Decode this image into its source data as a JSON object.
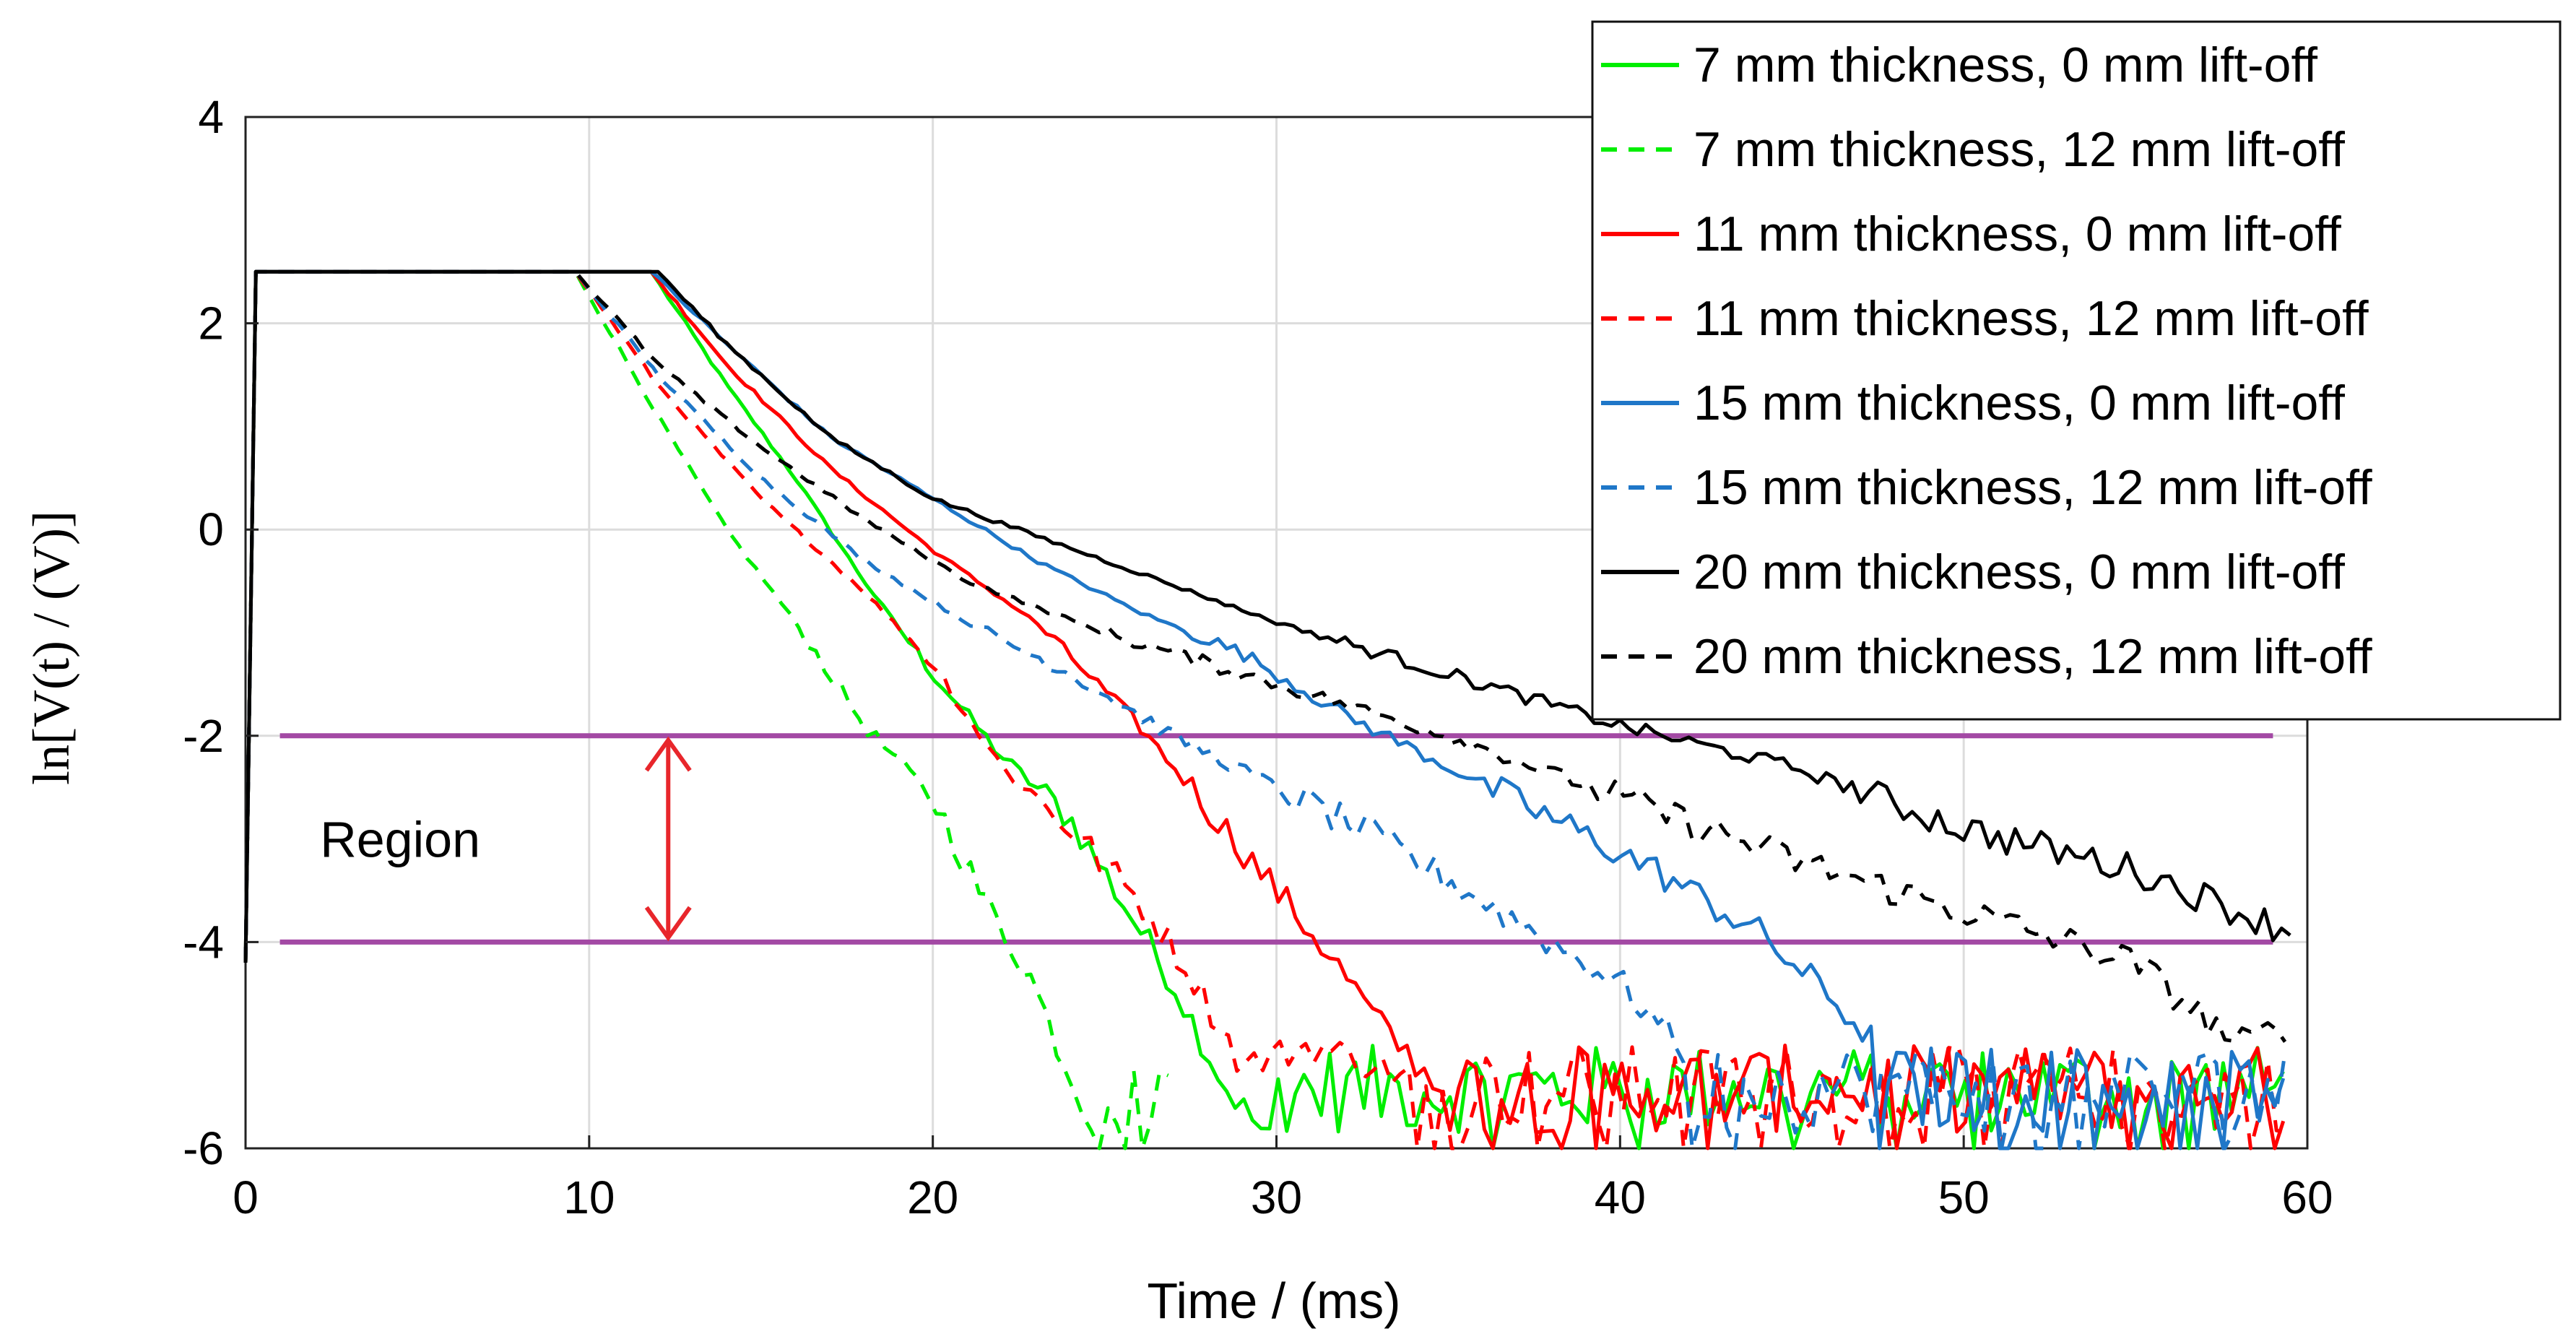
{
  "chart_data": {
    "type": "line",
    "xlabel": "Time / (ms)",
    "ylabel": "ln[V(t) / (V)]",
    "xlim": [
      0,
      60
    ],
    "ylim": [
      -6,
      4
    ],
    "xticks": [
      0,
      10,
      20,
      30,
      40,
      50,
      60
    ],
    "yticks": [
      -6,
      -4,
      -2,
      0,
      2,
      4
    ],
    "xtick_labels": [
      "0",
      "10",
      "20",
      "30",
      "40",
      "50",
      "60"
    ],
    "ytick_labels": [
      "-6",
      "-4",
      "-2",
      "0",
      "2",
      "4"
    ],
    "grid": true,
    "legend_position": "top-right",
    "plateau": {
      "level": 2.5,
      "rise_start_x": 0,
      "rise_start_y": -4.2,
      "rise_end_x": 0.3
    },
    "series": [
      {
        "name": "7 mm thickness, 0 mm lift-off",
        "color": "#00ee00",
        "dash": "solid",
        "start": [
          11.8,
          2.5
        ],
        "points": [
          [
            14,
            1.4
          ],
          [
            16,
            0.5
          ],
          [
            18,
            -0.5
          ],
          [
            20,
            -1.4
          ],
          [
            22,
            -2.2
          ],
          [
            24,
            -2.8
          ],
          [
            25.5,
            -3.6
          ],
          [
            27,
            -4.4
          ],
          [
            28.5,
            -5.4
          ],
          [
            30,
            -6.0
          ]
        ],
        "noise_end": 59.5
      },
      {
        "name": "7 mm thickness, 12 mm lift-off",
        "color": "#00ee00",
        "dash": "dashed",
        "start": [
          9.6,
          2.5
        ],
        "points": [
          [
            12,
            1.1
          ],
          [
            14,
            0.0
          ],
          [
            16,
            -0.9
          ],
          [
            18,
            -1.9
          ],
          [
            20,
            -2.6
          ],
          [
            21.5,
            -3.6
          ],
          [
            22.8,
            -4.3
          ],
          [
            24,
            -5.3
          ],
          [
            25,
            -6.0
          ]
        ],
        "noise_end": 27
      },
      {
        "name": "11 mm thickness, 0 mm lift-off",
        "color": "#ff0000",
        "dash": "solid",
        "start": [
          11.8,
          2.5
        ],
        "points": [
          [
            14,
            1.6
          ],
          [
            17,
            0.6
          ],
          [
            20,
            -0.2
          ],
          [
            23,
            -0.9
          ],
          [
            26,
            -1.9
          ],
          [
            28,
            -2.7
          ],
          [
            30,
            -3.5
          ],
          [
            31.5,
            -4.1
          ],
          [
            33,
            -4.8
          ],
          [
            35,
            -5.5
          ]
        ],
        "noise_end": 59.5
      },
      {
        "name": "11 mm thickness, 12 mm lift-off",
        "color": "#ff0000",
        "dash": "dashed",
        "start": [
          9.6,
          2.5
        ],
        "points": [
          [
            12,
            1.4
          ],
          [
            15,
            0.3
          ],
          [
            18,
            -0.6
          ],
          [
            20,
            -1.3
          ],
          [
            22,
            -2.3
          ],
          [
            24,
            -2.9
          ],
          [
            26,
            -3.6
          ],
          [
            27.5,
            -4.3
          ],
          [
            29,
            -5.2
          ],
          [
            31,
            -5.0
          ],
          [
            33,
            -5.2
          ]
        ],
        "noise_end": 59.5
      },
      {
        "name": "15 mm thickness, 0 mm lift-off",
        "color": "#1f77c8",
        "dash": "solid",
        "start": [
          11.8,
          2.5
        ],
        "points": [
          [
            14,
            1.8
          ],
          [
            17,
            0.9
          ],
          [
            20,
            0.3
          ],
          [
            23,
            -0.3
          ],
          [
            26,
            -0.8
          ],
          [
            29,
            -1.2
          ],
          [
            32,
            -1.8
          ],
          [
            35,
            -2.3
          ],
          [
            38,
            -2.8
          ],
          [
            41,
            -3.3
          ],
          [
            44,
            -3.9
          ],
          [
            46,
            -4.5
          ],
          [
            47.5,
            -5.0
          ]
        ],
        "noise_end": 59.5
      },
      {
        "name": "15 mm thickness, 12 mm lift-off",
        "color": "#1f77c8",
        "dash": "dashed",
        "start": [
          9.6,
          2.5
        ],
        "points": [
          [
            12,
            1.5
          ],
          [
            15,
            0.5
          ],
          [
            18,
            -0.3
          ],
          [
            21,
            -0.9
          ],
          [
            24,
            -1.4
          ],
          [
            27,
            -2.0
          ],
          [
            30,
            -2.5
          ],
          [
            33,
            -3.0
          ],
          [
            36,
            -3.6
          ],
          [
            38,
            -4.0
          ],
          [
            40,
            -4.4
          ],
          [
            42,
            -5.1
          ]
        ],
        "noise_end": 59.5
      },
      {
        "name": "20 mm thickness, 0 mm lift-off",
        "color": "#000000",
        "dash": "solid",
        "start": [
          12.0,
          2.5
        ],
        "points": [
          [
            14,
            1.8
          ],
          [
            17,
            0.9
          ],
          [
            20,
            0.3
          ],
          [
            25,
            -0.3
          ],
          [
            30,
            -0.9
          ],
          [
            35,
            -1.4
          ],
          [
            40,
            -1.9
          ],
          [
            45,
            -2.3
          ],
          [
            50,
            -2.9
          ],
          [
            55,
            -3.3
          ],
          [
            59.5,
            -3.9
          ]
        ],
        "noise_end": 59.5
      },
      {
        "name": "20 mm thickness, 12 mm lift-off",
        "color": "#000000",
        "dash": "dashed",
        "start": [
          9.6,
          2.5
        ],
        "points": [
          [
            12,
            1.6
          ],
          [
            15,
            0.8
          ],
          [
            18,
            0.1
          ],
          [
            21,
            -0.5
          ],
          [
            25,
            -1.0
          ],
          [
            30,
            -1.5
          ],
          [
            35,
            -2.0
          ],
          [
            40,
            -2.6
          ],
          [
            45,
            -3.2
          ],
          [
            50,
            -3.7
          ],
          [
            55,
            -4.2
          ],
          [
            58,
            -5.0
          ],
          [
            59.5,
            -4.8
          ]
        ],
        "noise_end": 59.5
      }
    ],
    "reference_lines": [
      {
        "y": -2,
        "x_start": 1,
        "x_end": 59,
        "color": "#a349a4"
      },
      {
        "y": -4,
        "x_start": 1,
        "x_end": 59,
        "color": "#a349a4"
      }
    ],
    "annotations": [
      {
        "text": "Region",
        "x": 4.5,
        "y": -3.0
      }
    ],
    "region_arrow": {
      "x": 12.3,
      "y_top": -2,
      "y_bottom": -4,
      "color": "#e8262b"
    }
  }
}
